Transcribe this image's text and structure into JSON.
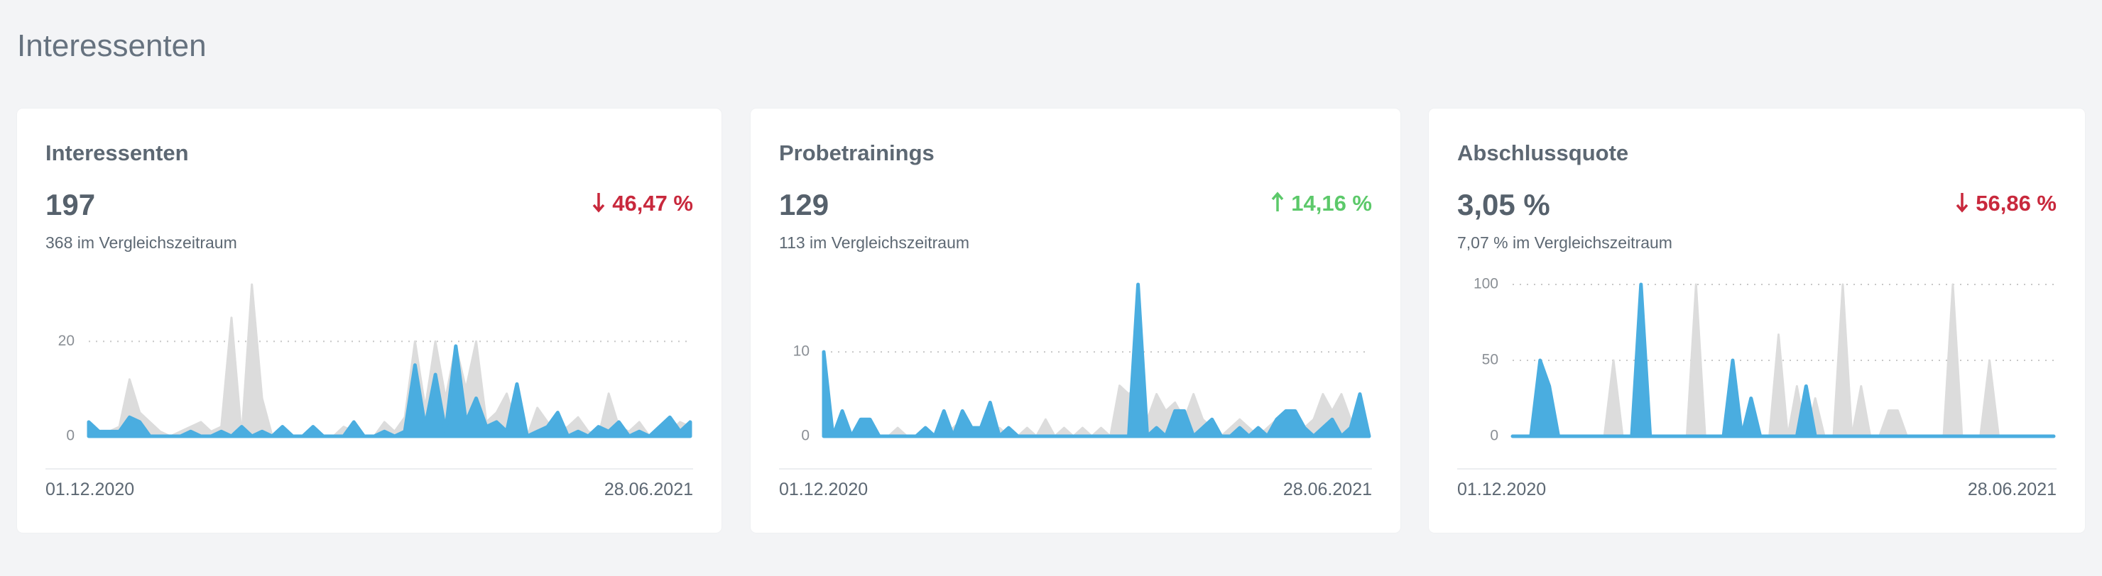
{
  "page_title": "Interessenten",
  "cards": [
    {
      "title": "Interessenten",
      "value": "197",
      "change": "46,47 %",
      "trend": "down",
      "comparison": "368 im Vergleichszeitraum",
      "start_date": "01.12.2020",
      "end_date": "28.06.2021"
    },
    {
      "title": "Probetrainings",
      "value": "129",
      "change": "14,16 %",
      "trend": "up",
      "comparison": "113 im Vergleichszeitraum",
      "start_date": "01.12.2020",
      "end_date": "28.06.2021"
    },
    {
      "title": "Abschlussquote",
      "value": "3,05 %",
      "change": "56,86 %",
      "trend": "down",
      "comparison": "7,07 % im Vergleichszeitraum",
      "start_date": "01.12.2020",
      "end_date": "28.06.2021"
    }
  ],
  "chart_data": [
    {
      "type": "line",
      "ylim": [
        0,
        32
      ],
      "yticks": [
        0,
        20
      ],
      "grid": true,
      "series": [
        {
          "color": "#dcdcdc",
          "values": [
            0,
            0,
            1,
            2,
            12,
            5,
            3,
            1,
            0,
            1,
            2,
            3,
            1,
            2,
            25,
            0,
            32,
            8,
            0,
            1,
            0,
            0,
            1,
            0,
            0,
            2,
            1,
            0,
            0,
            3,
            1,
            4,
            20,
            6,
            20,
            8,
            19,
            10,
            20,
            3,
            5,
            9,
            2,
            0,
            6,
            3,
            1,
            2,
            4,
            1,
            0,
            9,
            2,
            1,
            3,
            0,
            2,
            1,
            3,
            2
          ]
        },
        {
          "color": "#4aade0",
          "values": [
            3,
            1,
            1,
            1,
            4,
            3,
            0,
            0,
            0,
            0,
            1,
            0,
            0,
            1,
            0,
            2,
            0,
            1,
            0,
            2,
            0,
            0,
            2,
            0,
            0,
            0,
            3,
            0,
            0,
            1,
            0,
            1,
            15,
            2,
            13,
            1,
            19,
            3,
            8,
            2,
            3,
            1,
            11,
            0,
            1,
            2,
            5,
            0,
            1,
            0,
            2,
            1,
            3,
            0,
            1,
            0,
            2,
            4,
            1,
            3
          ]
        }
      ]
    },
    {
      "type": "line",
      "ylim": [
        0,
        18
      ],
      "yticks": [
        0,
        10
      ],
      "grid": true,
      "series": [
        {
          "color": "#dcdcdc",
          "values": [
            0,
            0,
            0,
            0,
            0,
            0,
            0,
            0,
            1,
            0,
            0,
            1,
            0,
            0,
            1,
            2,
            0,
            1,
            0,
            1,
            0,
            0,
            1,
            0,
            2,
            0,
            1,
            0,
            1,
            0,
            1,
            0,
            6,
            5,
            6,
            2,
            5,
            3,
            4,
            2,
            5,
            2,
            1,
            0,
            1,
            2,
            1,
            0,
            1,
            2,
            1,
            0,
            1,
            2,
            5,
            3,
            5,
            2,
            2,
            0
          ]
        },
        {
          "color": "#4aade0",
          "values": [
            10,
            0,
            3,
            0,
            2,
            2,
            0,
            0,
            0,
            0,
            0,
            1,
            0,
            3,
            0,
            3,
            1,
            1,
            4,
            0,
            1,
            0,
            0,
            0,
            0,
            0,
            0,
            0,
            0,
            0,
            0,
            0,
            0,
            0,
            18,
            0,
            1,
            0,
            3,
            3,
            0,
            1,
            2,
            0,
            0,
            1,
            0,
            1,
            0,
            2,
            3,
            3,
            1,
            0,
            1,
            2,
            0,
            1,
            5,
            0
          ]
        }
      ]
    },
    {
      "type": "line",
      "ylim": [
        0,
        100
      ],
      "yticks": [
        0,
        50,
        100
      ],
      "grid": true,
      "series": [
        {
          "color": "#dcdcdc",
          "values": [
            0,
            0,
            0,
            0,
            0,
            0,
            0,
            0,
            0,
            0,
            0,
            50,
            0,
            0,
            0,
            0,
            0,
            0,
            0,
            0,
            100,
            0,
            0,
            0,
            0,
            0,
            0,
            0,
            0,
            67,
            0,
            33,
            0,
            25,
            0,
            0,
            100,
            0,
            33,
            0,
            0,
            17,
            17,
            0,
            0,
            0,
            0,
            0,
            100,
            0,
            0,
            0,
            50,
            0,
            0,
            0,
            0,
            0,
            0,
            0
          ]
        },
        {
          "color": "#4aade0",
          "values": [
            0,
            0,
            0,
            50,
            33,
            0,
            0,
            0,
            0,
            0,
            0,
            0,
            0,
            0,
            100,
            0,
            0,
            0,
            0,
            0,
            0,
            0,
            0,
            0,
            50,
            0,
            25,
            0,
            0,
            0,
            0,
            0,
            33,
            0,
            0,
            0,
            0,
            0,
            0,
            0,
            0,
            0,
            0,
            0,
            0,
            0,
            0,
            0,
            0,
            0,
            0,
            0,
            0,
            0,
            0,
            0,
            0,
            0,
            0,
            0
          ]
        }
      ]
    }
  ]
}
